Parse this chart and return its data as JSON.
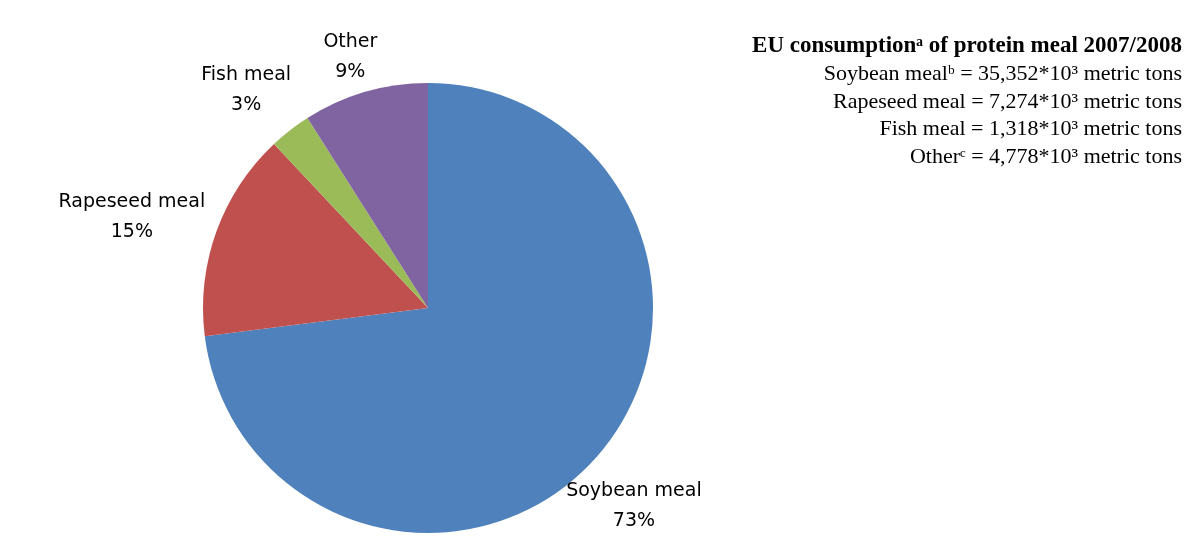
{
  "chart_data": {
    "type": "pie",
    "title": "EU consumptionᵃ of protein meal 2007/2008",
    "categories": [
      "Soybean meal",
      "Rapeseed meal",
      "Fish meal",
      "Other"
    ],
    "values": [
      73,
      15,
      3,
      9
    ],
    "value_labels": [
      "73%",
      "15%",
      "3%",
      "9%"
    ],
    "colors": [
      "#4f81bd",
      "#c0504d",
      "#9bbb59",
      "#8064a2"
    ],
    "annotations": [
      "Soybean mealᵇ = 35,352*10³ metric tons",
      "Rapeseed meal = 7,274*10³ metric tons",
      "Fish meal = 1,318*10³ metric tons",
      "Otherᶜ = 4,778*10³ metric tons"
    ]
  }
}
